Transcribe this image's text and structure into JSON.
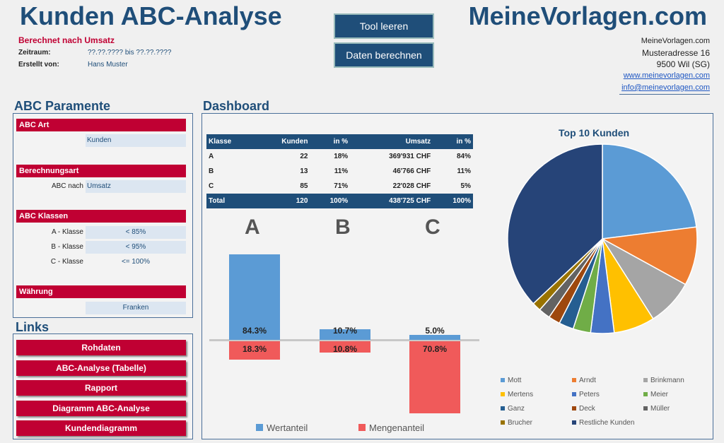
{
  "header": {
    "title": "Kunden ABC-Analyse",
    "subtitle": "Berechnet nach Umsatz",
    "zeitraum_label": "Zeitraum:",
    "zeitraum_value": "??.??.???? bis ??.??.????",
    "erstellt_label": "Erstellt von:",
    "erstellt_value": "Hans Muster",
    "brand": "MeineVorlagen.com"
  },
  "buttons": {
    "clear": "Tool leeren",
    "calc": "Daten berechnen"
  },
  "address": {
    "company": "MeineVorlagen.com",
    "street": "Musteradresse 16",
    "city": "9500 Wil (SG)",
    "web": "www.meinevorlagen.com",
    "email": "info@meinevorlagen.com"
  },
  "params": {
    "title": "ABC Paramente",
    "art_header": "ABC Art",
    "art_value": "Kunden",
    "berechnung_header": "Berechnungsart",
    "berechnung_label": "ABC nach",
    "berechnung_value": "Umsatz",
    "klassen_header": "ABC Klassen",
    "klassen": [
      {
        "label": "A - Klasse",
        "value": "< 85%"
      },
      {
        "label": "B - Klasse",
        "value": "< 95%"
      },
      {
        "label": "C - Klasse",
        "value": "<= 100%"
      }
    ],
    "waehrung_header": "Währung",
    "waehrung_value": "Franken"
  },
  "links": {
    "title": "Links",
    "items": [
      "Rohdaten",
      "ABC-Analyse (Tabelle)",
      "Rapport",
      "Diagramm ABC-Analyse",
      "Kundendiagramm"
    ]
  },
  "dashboard": {
    "title": "Dashboard",
    "table": {
      "headers": [
        "Klasse",
        "Kunden",
        "in %",
        "Umsatz",
        "in %"
      ],
      "rows": [
        [
          "A",
          "22",
          "18%",
          "369'931 CHF",
          "84%"
        ],
        [
          "B",
          "13",
          "11%",
          "46'766 CHF",
          "11%"
        ],
        [
          "C",
          "85",
          "71%",
          "22'028 CHF",
          "5%"
        ]
      ],
      "total": [
        "Total",
        "120",
        "100%",
        "438'725 CHF",
        "100%"
      ]
    }
  },
  "chart_data": [
    {
      "type": "bar",
      "categories": [
        "A",
        "B",
        "C"
      ],
      "series": [
        {
          "name": "Wertanteil",
          "values": [
            84.3,
            10.7,
            5.0
          ],
          "labels": [
            "84.3%",
            "10.7%",
            "5.0%"
          ],
          "color": "#5b9bd5"
        },
        {
          "name": "Mengenanteil",
          "values": [
            -18.3,
            -10.8,
            -70.8
          ],
          "labels": [
            "18.3%",
            "10.8%",
            "70.8%"
          ],
          "color": "#f05a5a"
        }
      ],
      "legend": "bottom"
    },
    {
      "type": "pie",
      "title": "Top 10 Kunden",
      "categories": [
        "Mott",
        "Arndt",
        "Brinkmann",
        "Mertens",
        "Peters",
        "Meier",
        "Ganz",
        "Deck",
        "Müller",
        "Brucher",
        "Restliche Kunden"
      ],
      "values": [
        23,
        10,
        8,
        7,
        4,
        3,
        2.5,
        2,
        2,
        1.5,
        37
      ],
      "colors": [
        "#5b9bd5",
        "#ed7d31",
        "#a5a5a5",
        "#ffc000",
        "#4472c4",
        "#70ad47",
        "#255e91",
        "#9e480e",
        "#636363",
        "#997300",
        "#264478"
      ],
      "legend": "bottom"
    }
  ]
}
